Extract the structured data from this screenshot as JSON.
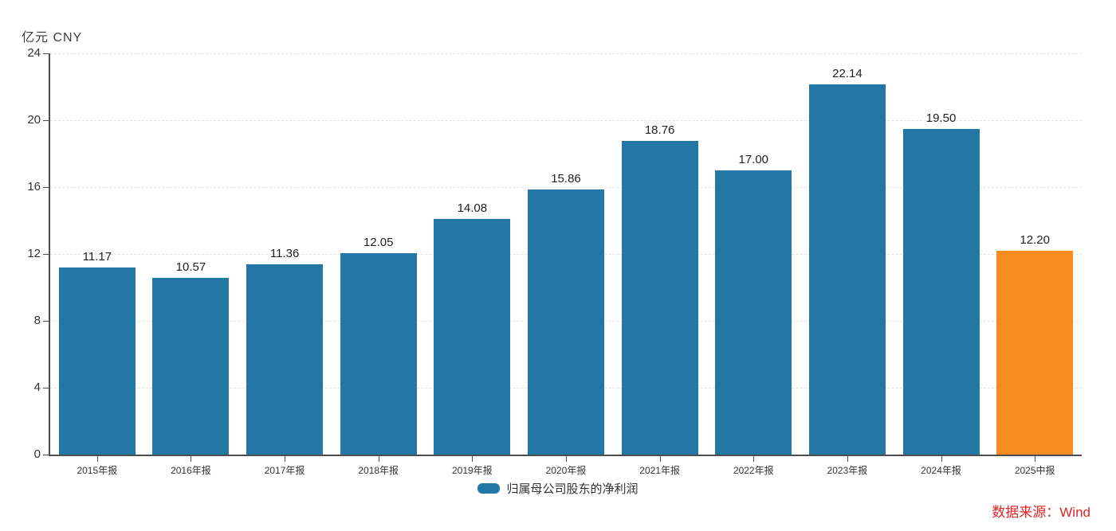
{
  "header": {
    "unit_label": "亿元 CNY"
  },
  "legend": {
    "label": "归属母公司股东的净利润"
  },
  "source": {
    "label": "数据来源：Wind",
    "color": "#E02428"
  },
  "chart_data": {
    "type": "bar",
    "title": "",
    "unit": "亿元 CNY",
    "categories": [
      "2015年报",
      "2016年报",
      "2017年报",
      "2018年报",
      "2019年报",
      "2020年报",
      "2021年报",
      "2022年报",
      "2023年报",
      "2024年报",
      "2025中报"
    ],
    "values": [
      11.17,
      10.57,
      11.36,
      12.05,
      14.08,
      15.86,
      18.76,
      17.0,
      22.14,
      19.5,
      12.2
    ],
    "value_labels": [
      "11.17",
      "10.57",
      "11.36",
      "12.05",
      "14.08",
      "15.86",
      "18.76",
      "17.00",
      "22.14",
      "19.50",
      "12.20"
    ],
    "series_name": "归属母公司股东的净利润",
    "ylim": [
      0,
      24
    ],
    "yticks": [
      0,
      4,
      8,
      12,
      16,
      20,
      24
    ],
    "bar_color": "#2277A4",
    "highlight_color": "#F68C1E",
    "highlight_index": 10,
    "grid": "horizontal-dashed",
    "grid_color": "#e2e2e2",
    "axis_color": "#4d4d4d",
    "legend_position": "bottom-center"
  }
}
